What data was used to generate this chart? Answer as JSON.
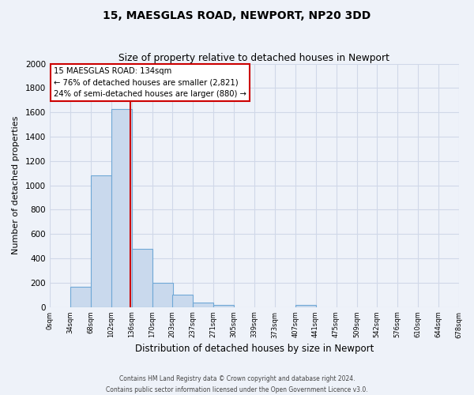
{
  "title": "15, MAESGLAS ROAD, NEWPORT, NP20 3DD",
  "subtitle": "Size of property relative to detached houses in Newport",
  "xlabel": "Distribution of detached houses by size in Newport",
  "ylabel": "Number of detached properties",
  "footer_line1": "Contains HM Land Registry data © Crown copyright and database right 2024.",
  "footer_line2": "Contains public sector information licensed under the Open Government Licence v3.0.",
  "bar_left_edges": [
    0,
    34,
    68,
    102,
    136,
    170,
    203,
    237,
    271,
    305,
    339,
    373,
    407,
    441,
    475,
    509,
    542,
    576,
    610,
    644
  ],
  "bar_heights": [
    0,
    170,
    1085,
    1630,
    480,
    200,
    100,
    38,
    20,
    0,
    0,
    0,
    15,
    0,
    0,
    0,
    0,
    0,
    0,
    0
  ],
  "bin_width": 34,
  "bar_color": "#c9d9ed",
  "bar_edge_color": "#6fa8d6",
  "property_size": 134,
  "vline_color": "#cc0000",
  "annotation_text_line1": "15 MAESGLAS ROAD: 134sqm",
  "annotation_text_line2": "← 76% of detached houses are smaller (2,821)",
  "annotation_text_line3": "24% of semi-detached houses are larger (880) →",
  "annotation_box_color": "#ffffff",
  "annotation_box_edge": "#cc0000",
  "xlim_left": 0,
  "xlim_right": 678,
  "ylim_bottom": 0,
  "ylim_top": 2000,
  "xtick_positions": [
    0,
    34,
    68,
    102,
    136,
    170,
    203,
    237,
    271,
    305,
    339,
    373,
    407,
    441,
    475,
    509,
    542,
    576,
    610,
    644,
    678
  ],
  "xtick_labels": [
    "0sqm",
    "34sqm",
    "68sqm",
    "102sqm",
    "136sqm",
    "170sqm",
    "203sqm",
    "237sqm",
    "271sqm",
    "305sqm",
    "339sqm",
    "373sqm",
    "407sqm",
    "441sqm",
    "475sqm",
    "509sqm",
    "542sqm",
    "576sqm",
    "610sqm",
    "644sqm",
    "678sqm"
  ],
  "ytick_positions": [
    0,
    200,
    400,
    600,
    800,
    1000,
    1200,
    1400,
    1600,
    1800,
    2000
  ],
  "grid_color": "#d0d8e8",
  "background_color": "#eef2f9"
}
